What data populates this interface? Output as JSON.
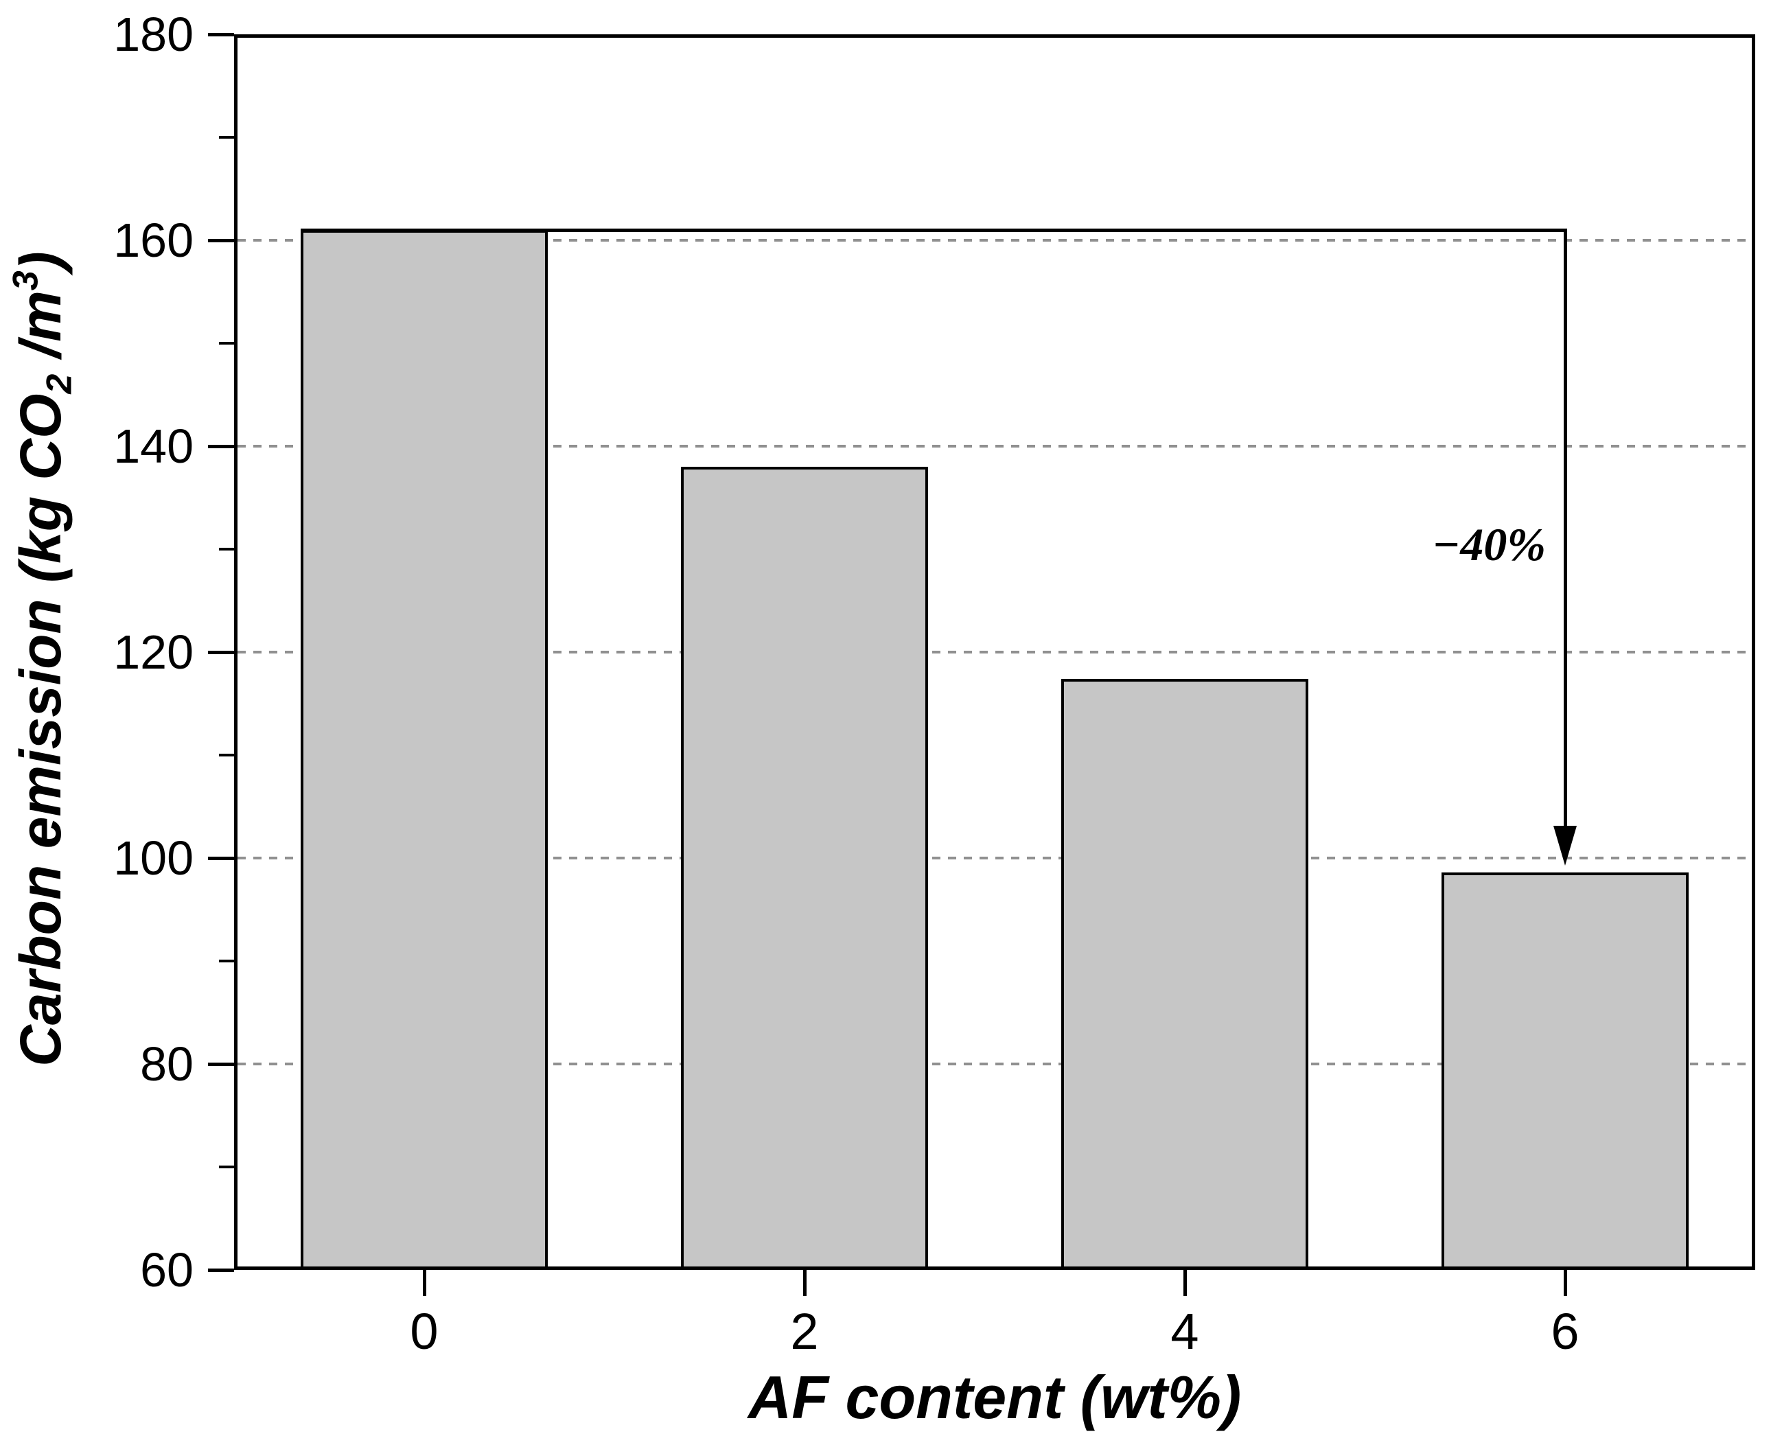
{
  "figure": {
    "background": "#ffffff",
    "frame_color": "#000000"
  },
  "chart_data": {
    "type": "bar",
    "title": "",
    "categories": [
      "0",
      "2",
      "4",
      "6"
    ],
    "values": [
      161,
      138,
      117.4,
      98.6
    ],
    "xlabel": "AF content (wt%)",
    "ylabel": "Carbon emission (kg CO2 /m3)",
    "ylabel_parts": {
      "pre": "Carbon emission (kg CO",
      "sub": "2",
      "mid": " /m",
      "sup": "3",
      "post": ")"
    },
    "ylim": [
      60,
      180
    ],
    "yticks": [
      60,
      80,
      100,
      120,
      140,
      160,
      180
    ],
    "yticks_minor": [
      70,
      90,
      110,
      130,
      150,
      170
    ],
    "ytick_labels": [
      "60",
      "80",
      "100",
      "120",
      "140",
      "160",
      "180"
    ],
    "grid": {
      "axis": "y",
      "style": "dashed",
      "color": "#909090",
      "on_values": [
        80,
        100,
        120,
        140,
        160
      ]
    },
    "legend": "none",
    "bar_style": {
      "fill": "#c6c6c6",
      "edge": "#000000"
    },
    "annotation": {
      "label": "−40%",
      "from_category": "0",
      "from_value": 161,
      "to_category": "6",
      "to_value": 98.6
    }
  }
}
